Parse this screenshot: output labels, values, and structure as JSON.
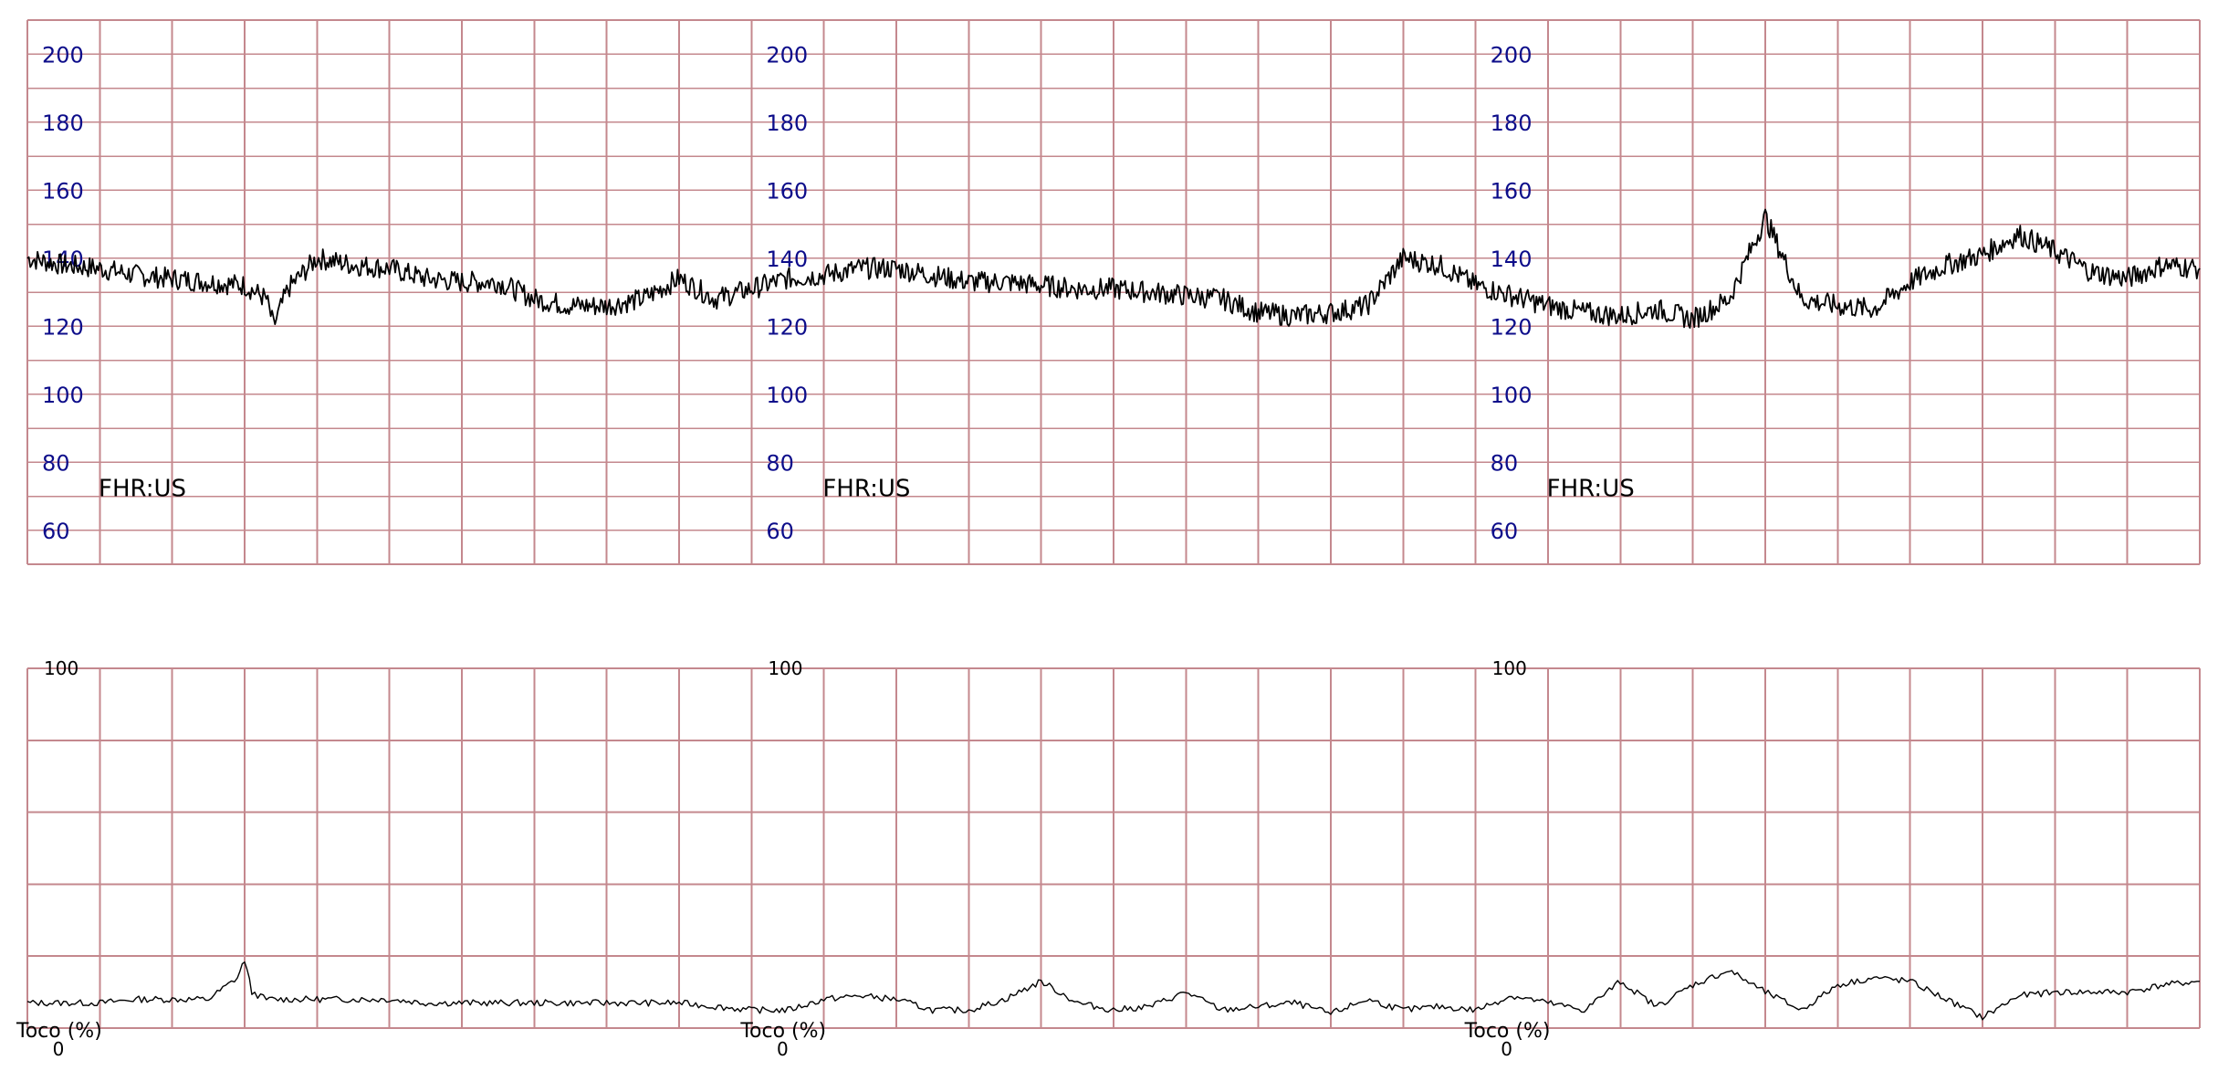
{
  "chart_data": [
    {
      "type": "line",
      "panel": "fhr",
      "channel_label": "FHR:US",
      "ylabel": "",
      "ylim": [
        50,
        210
      ],
      "y_ticks": [
        "200",
        "180",
        "160",
        "140",
        "120",
        "100",
        "80",
        "60"
      ],
      "x_range_minutes": [
        0,
        30
      ],
      "grid": true,
      "series": [
        {
          "x": [
            0,
            0.5,
            1,
            1.5,
            2,
            2.5,
            3,
            3.3,
            3.4,
            3.6,
            4,
            4.5,
            5,
            5.5,
            6,
            6.5,
            7,
            7.5,
            8,
            8.5,
            9,
            9.5,
            10,
            10.5,
            11,
            11.5,
            12,
            12.5,
            13,
            13.5,
            14,
            14.5,
            15,
            15.5,
            16,
            16.5,
            17,
            17.5,
            18,
            18.5,
            19,
            19.5,
            20,
            20.5,
            21,
            21.5,
            22,
            22.5,
            23,
            23.5,
            24,
            24.5,
            25,
            25.5,
            26,
            26.5,
            27,
            27.5,
            28,
            28.5,
            29,
            29.5,
            30
          ],
          "y": [
            140,
            138,
            137,
            135,
            134,
            133,
            132,
            128,
            120,
            131,
            140,
            138,
            137,
            134,
            133,
            133,
            128,
            126,
            126,
            128,
            134,
            128,
            131,
            134,
            135,
            137,
            137,
            135,
            133,
            133,
            132,
            131,
            131,
            130,
            129,
            128,
            124,
            123,
            124,
            126,
            140,
            138,
            132,
            129,
            126,
            124,
            123,
            125,
            122,
            128,
            152,
            128,
            126,
            125,
            133,
            138,
            141,
            147,
            142,
            136,
            134,
            138,
            137
          ]
        }
      ]
    },
    {
      "type": "line",
      "panel": "toco",
      "channel_label": "Toco (%)",
      "ylabel": "",
      "ylim": [
        0,
        100
      ],
      "y_ticks": [
        "100",
        "0"
      ],
      "x_range_minutes": [
        0,
        30
      ],
      "grid": true,
      "series": [
        {
          "x": [
            0,
            0.5,
            1,
            1.5,
            2,
            2.5,
            2.9,
            3,
            3.1,
            3.3,
            3.5,
            4,
            4.5,
            5,
            5.5,
            6,
            6.5,
            7,
            7.5,
            8,
            8.5,
            9,
            9.5,
            10,
            10.5,
            11,
            11.5,
            12,
            12.5,
            13,
            13.5,
            14,
            14.5,
            15,
            15.5,
            16,
            16.5,
            17,
            17.5,
            18,
            18.5,
            19,
            19.5,
            20,
            20.5,
            21,
            21.5,
            22,
            22.5,
            23,
            23.5,
            24,
            24.5,
            25,
            25.5,
            26,
            26.5,
            27,
            27.5,
            28,
            28.5,
            29,
            29.5,
            30
          ],
          "y": [
            7,
            7,
            7,
            8,
            8,
            8,
            14,
            19,
            10,
            8,
            8,
            8,
            8,
            8,
            7,
            7,
            7,
            7,
            7,
            7,
            7,
            7,
            6,
            5,
            5,
            8,
            9,
            8,
            5,
            5,
            8,
            13,
            7,
            5,
            6,
            10,
            5,
            6,
            7,
            4,
            8,
            5,
            6,
            5,
            9,
            7,
            5,
            13,
            6,
            12,
            16,
            10,
            5,
            12,
            14,
            13,
            8,
            3,
            9,
            10,
            10,
            10,
            12,
            13
          ]
        }
      ]
    }
  ]
}
